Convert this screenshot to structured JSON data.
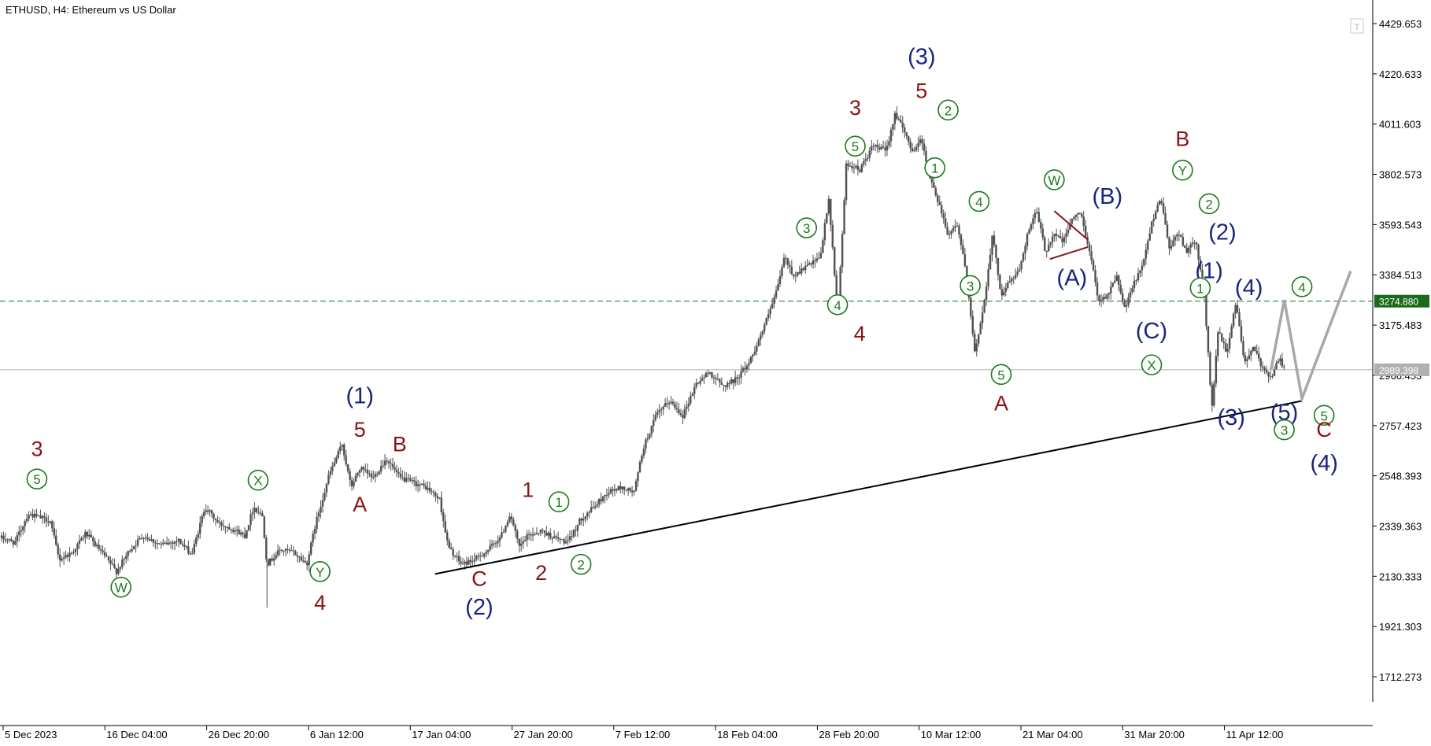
{
  "chart_data": {
    "type": "candlestick",
    "title": "ETHUSD, H4:  Ethereum vs US Dollar",
    "symbol": "ETHUSD",
    "timeframe": "H4",
    "description": "Ethereum vs US Dollar",
    "y_ticks": [
      "4429.653",
      "4220.633",
      "4011.603",
      "3802.573",
      "3593.543",
      "3384.513",
      "3175.483",
      "2966.453",
      "2757.423",
      "2548.393",
      "2339.363",
      "2130.333",
      "1921.303",
      "1712.273"
    ],
    "ylim": [
      1620,
      4480
    ],
    "x_ticks": [
      "5 Dec 2023",
      "16 Dec 04:00",
      "26 Dec 20:00",
      "6 Jan 12:00",
      "17 Jan 04:00",
      "27 Jan 20:00",
      "7 Feb 12:00",
      "18 Feb 04:00",
      "28 Feb 20:00",
      "10 Mar 12:00",
      "21 Mar 04:00",
      "31 Mar 20:00",
      "11 Apr 12:00"
    ],
    "price_lines": {
      "level": {
        "value": 3274.88,
        "label": "3274.880",
        "color": "#1a6b1a"
      },
      "current": {
        "value": 2989.398,
        "label": "2989.398",
        "color": "#b0b0b0"
      }
    },
    "price_path": [
      {
        "t": 0,
        "p": 2290
      },
      {
        "t": 1.5,
        "p": 2270
      },
      {
        "t": 3,
        "p": 2390
      },
      {
        "t": 5.5,
        "p": 2360
      },
      {
        "t": 6.5,
        "p": 2200
      },
      {
        "t": 8,
        "p": 2230
      },
      {
        "t": 9.5,
        "p": 2310
      },
      {
        "t": 11.5,
        "p": 2220
      },
      {
        "t": 13,
        "p": 2150
      },
      {
        "t": 14.5,
        "p": 2240
      },
      {
        "t": 16,
        "p": 2300
      },
      {
        "t": 18,
        "p": 2260
      },
      {
        "t": 20,
        "p": 2280
      },
      {
        "t": 21.5,
        "p": 2220
      },
      {
        "t": 23,
        "p": 2420
      },
      {
        "t": 24.5,
        "p": 2350
      },
      {
        "t": 26,
        "p": 2330
      },
      {
        "t": 27.5,
        "p": 2300
      },
      {
        "t": 28.5,
        "p": 2420
      },
      {
        "t": 29.5,
        "p": 2380
      },
      {
        "t": 30,
        "p": 2180
      },
      {
        "t": 31.5,
        "p": 2240
      },
      {
        "t": 33,
        "p": 2230
      },
      {
        "t": 34.5,
        "p": 2180
      },
      {
        "t": 35.5,
        "p": 2350
      },
      {
        "t": 37,
        "p": 2550
      },
      {
        "t": 38.5,
        "p": 2680
      },
      {
        "t": 39.5,
        "p": 2500
      },
      {
        "t": 40.5,
        "p": 2580
      },
      {
        "t": 42,
        "p": 2540
      },
      {
        "t": 43.5,
        "p": 2620
      },
      {
        "t": 45,
        "p": 2540
      },
      {
        "t": 46.5,
        "p": 2520
      },
      {
        "t": 48,
        "p": 2500
      },
      {
        "t": 49.5,
        "p": 2450
      },
      {
        "t": 50.5,
        "p": 2250
      },
      {
        "t": 52,
        "p": 2180
      },
      {
        "t": 53.5,
        "p": 2200
      },
      {
        "t": 55,
        "p": 2240
      },
      {
        "t": 56.5,
        "p": 2300
      },
      {
        "t": 57.5,
        "p": 2390
      },
      {
        "t": 58.5,
        "p": 2250
      },
      {
        "t": 59.5,
        "p": 2300
      },
      {
        "t": 61,
        "p": 2320
      },
      {
        "t": 62.5,
        "p": 2290
      },
      {
        "t": 64,
        "p": 2270
      },
      {
        "t": 65.5,
        "p": 2370
      },
      {
        "t": 67,
        "p": 2420
      },
      {
        "t": 68.5,
        "p": 2480
      },
      {
        "t": 70,
        "p": 2500
      },
      {
        "t": 71.5,
        "p": 2480
      },
      {
        "t": 72.5,
        "p": 2660
      },
      {
        "t": 74,
        "p": 2800
      },
      {
        "t": 75.5,
        "p": 2860
      },
      {
        "t": 77,
        "p": 2800
      },
      {
        "t": 78.5,
        "p": 2930
      },
      {
        "t": 80,
        "p": 2980
      },
      {
        "t": 81.5,
        "p": 2920
      },
      {
        "t": 83,
        "p": 2950
      },
      {
        "t": 84.5,
        "p": 3020
      },
      {
        "t": 86,
        "p": 3150
      },
      {
        "t": 87.5,
        "p": 3300
      },
      {
        "t": 88.5,
        "p": 3460
      },
      {
        "t": 89.5,
        "p": 3380
      },
      {
        "t": 91,
        "p": 3420
      },
      {
        "t": 92.5,
        "p": 3450
      },
      {
        "t": 93.5,
        "p": 3700
      },
      {
        "t": 94.5,
        "p": 3220
      },
      {
        "t": 95.5,
        "p": 3850
      },
      {
        "t": 97,
        "p": 3820
      },
      {
        "t": 98.5,
        "p": 3920
      },
      {
        "t": 100,
        "p": 3900
      },
      {
        "t": 101,
        "p": 4060
      },
      {
        "t": 102,
        "p": 3980
      },
      {
        "t": 103,
        "p": 3900
      },
      {
        "t": 104,
        "p": 3950
      },
      {
        "t": 105,
        "p": 3780
      },
      {
        "t": 106,
        "p": 3680
      },
      {
        "t": 107,
        "p": 3550
      },
      {
        "t": 108,
        "p": 3600
      },
      {
        "t": 109,
        "p": 3400
      },
      {
        "t": 110,
        "p": 3060
      },
      {
        "t": 111,
        "p": 3250
      },
      {
        "t": 112,
        "p": 3550
      },
      {
        "t": 113,
        "p": 3300
      },
      {
        "t": 114,
        "p": 3360
      },
      {
        "t": 115,
        "p": 3400
      },
      {
        "t": 116,
        "p": 3560
      },
      {
        "t": 117,
        "p": 3650
      },
      {
        "t": 118,
        "p": 3480
      },
      {
        "t": 119,
        "p": 3560
      },
      {
        "t": 120,
        "p": 3520
      },
      {
        "t": 121,
        "p": 3620
      },
      {
        "t": 122,
        "p": 3640
      },
      {
        "t": 123,
        "p": 3480
      },
      {
        "t": 124,
        "p": 3280
      },
      {
        "t": 125,
        "p": 3300
      },
      {
        "t": 126,
        "p": 3380
      },
      {
        "t": 127,
        "p": 3240
      },
      {
        "t": 128,
        "p": 3350
      },
      {
        "t": 129,
        "p": 3420
      },
      {
        "t": 130,
        "p": 3600
      },
      {
        "t": 131,
        "p": 3710
      },
      {
        "t": 132,
        "p": 3500
      },
      {
        "t": 133,
        "p": 3560
      },
      {
        "t": 134,
        "p": 3480
      },
      {
        "t": 135,
        "p": 3530
      },
      {
        "t": 136,
        "p": 3280
      },
      {
        "t": 136.8,
        "p": 2820
      },
      {
        "t": 137.5,
        "p": 3150
      },
      {
        "t": 138.5,
        "p": 3060
      },
      {
        "t": 139.5,
        "p": 3270
      },
      {
        "t": 140.5,
        "p": 3020
      },
      {
        "t": 141.5,
        "p": 3080
      },
      {
        "t": 142.5,
        "p": 3000
      },
      {
        "t": 143.5,
        "p": 2960
      },
      {
        "t": 144.5,
        "p": 3040
      },
      {
        "t": 145,
        "p": 2990
      }
    ],
    "trendline": {
      "from": {
        "t": 49,
        "p": 2140
      },
      "to": {
        "t": 147,
        "p": 2860
      },
      "color": "#000000"
    },
    "projection": [
      {
        "t": 143.5,
        "p": 2990
      },
      {
        "t": 145,
        "p": 3280
      },
      {
        "t": 147,
        "p": 2870
      },
      {
        "t": 152.5,
        "p": 3400
      }
    ],
    "triangle": [
      {
        "from": {
          "t": 119,
          "p": 3650
        },
        "to": {
          "t": 122.8,
          "p": 3530
        }
      },
      {
        "from": {
          "t": 118.5,
          "p": 3450
        },
        "to": {
          "t": 122.8,
          "p": 3500
        }
      }
    ],
    "wave_labels": [
      {
        "text": "3",
        "t": 4,
        "p": 2660,
        "style": "red"
      },
      {
        "text": "5",
        "t": 4,
        "p": 2535,
        "style": "green"
      },
      {
        "text": "W",
        "t": 13.5,
        "p": 2085,
        "style": "green"
      },
      {
        "text": "X",
        "t": 29,
        "p": 2530,
        "style": "green"
      },
      {
        "text": "Y",
        "t": 36,
        "p": 2150,
        "style": "green"
      },
      {
        "text": "4",
        "t": 36,
        "p": 2020,
        "style": "red"
      },
      {
        "text": "(1)",
        "t": 40.5,
        "p": 2880,
        "style": "navy"
      },
      {
        "text": "5",
        "t": 40.5,
        "p": 2740,
        "style": "red"
      },
      {
        "text": "A",
        "t": 40.5,
        "p": 2430,
        "style": "red"
      },
      {
        "text": "B",
        "t": 45,
        "p": 2680,
        "style": "red"
      },
      {
        "text": "C",
        "t": 54,
        "p": 2120,
        "style": "red"
      },
      {
        "text": "(2)",
        "t": 54,
        "p": 2000,
        "style": "navy"
      },
      {
        "text": "1",
        "t": 59.5,
        "p": 2490,
        "style": "red"
      },
      {
        "text": "1",
        "t": 63,
        "p": 2440,
        "style": "green"
      },
      {
        "text": "2",
        "t": 61,
        "p": 2145,
        "style": "red"
      },
      {
        "text": "2",
        "t": 65.5,
        "p": 2180,
        "style": "green"
      },
      {
        "text": "3",
        "t": 91,
        "p": 3580,
        "style": "green"
      },
      {
        "text": "4",
        "t": 94.5,
        "p": 3260,
        "style": "green"
      },
      {
        "text": "5",
        "t": 96.5,
        "p": 3920,
        "style": "green"
      },
      {
        "text": "3",
        "t": 96.5,
        "p": 4080,
        "style": "red"
      },
      {
        "text": "4",
        "t": 97,
        "p": 3140,
        "style": "red"
      },
      {
        "text": "(3)",
        "t": 104,
        "p": 4290,
        "style": "navy"
      },
      {
        "text": "5",
        "t": 104,
        "p": 4150,
        "style": "red"
      },
      {
        "text": "2",
        "t": 107,
        "p": 4070,
        "style": "green"
      },
      {
        "text": "1",
        "t": 105.5,
        "p": 3830,
        "style": "green"
      },
      {
        "text": "4",
        "t": 110.5,
        "p": 3690,
        "style": "green"
      },
      {
        "text": "3",
        "t": 109.5,
        "p": 3340,
        "style": "green"
      },
      {
        "text": "5",
        "t": 113,
        "p": 2970,
        "style": "green"
      },
      {
        "text": "A",
        "t": 113,
        "p": 2850,
        "style": "red"
      },
      {
        "text": "W",
        "t": 119,
        "p": 3780,
        "style": "green"
      },
      {
        "text": "(B)",
        "t": 125,
        "p": 3710,
        "style": "navy"
      },
      {
        "text": "(A)",
        "t": 121,
        "p": 3370,
        "style": "navy"
      },
      {
        "text": "(C)",
        "t": 130,
        "p": 3150,
        "style": "navy"
      },
      {
        "text": "X",
        "t": 130,
        "p": 3010,
        "style": "green"
      },
      {
        "text": "B",
        "t": 133.5,
        "p": 3950,
        "style": "red"
      },
      {
        "text": "Y",
        "t": 133.5,
        "p": 3820,
        "style": "green"
      },
      {
        "text": "2",
        "t": 136.5,
        "p": 3680,
        "style": "green"
      },
      {
        "text": "(2)",
        "t": 138,
        "p": 3560,
        "style": "navy"
      },
      {
        "text": "(1)",
        "t": 136.5,
        "p": 3400,
        "style": "navy"
      },
      {
        "text": "1",
        "t": 135.5,
        "p": 3330,
        "style": "green"
      },
      {
        "text": "(4)",
        "t": 141,
        "p": 3330,
        "style": "navy"
      },
      {
        "text": "4",
        "t": 147,
        "p": 3335,
        "style": "green"
      },
      {
        "text": "(3)",
        "t": 139,
        "p": 2790,
        "style": "navy"
      },
      {
        "text": "(5)",
        "t": 145,
        "p": 2810,
        "style": "navy"
      },
      {
        "text": "3",
        "t": 145,
        "p": 2740,
        "style": "green"
      },
      {
        "text": "5",
        "t": 149.5,
        "p": 2800,
        "style": "green"
      },
      {
        "text": "C",
        "t": 149.5,
        "p": 2740,
        "style": "red"
      },
      {
        "text": "(4)",
        "t": 149.5,
        "p": 2600,
        "style": "navy"
      }
    ],
    "colors": {
      "candles": "#505050",
      "red": "#8b1414",
      "green": "#1a7a1a",
      "navy": "#1a237e",
      "grid": "none"
    },
    "grid": false
  }
}
